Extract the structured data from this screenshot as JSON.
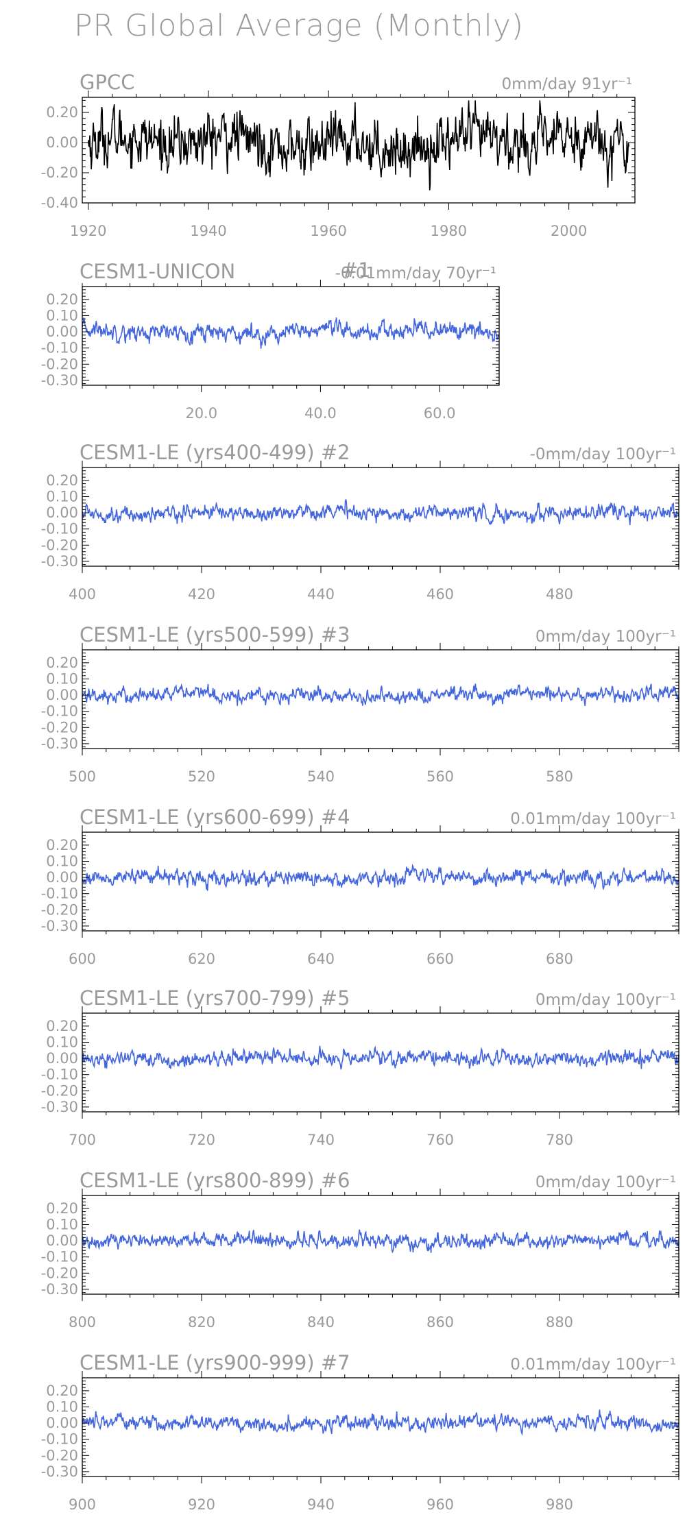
{
  "figure": {
    "title": "PR Global Average (Monthly)"
  },
  "chart_data": [
    {
      "type": "line",
      "title": "GPCC",
      "trend_label": "0mm/day 91yr⁻¹",
      "x_range": [
        1919,
        2011
      ],
      "ylim": [
        -0.4,
        0.3
      ],
      "y_ticks": [
        0.2,
        0.0,
        -0.2,
        -0.4
      ],
      "y_tick_labels": [
        "0.20",
        "0.00",
        "-0.20",
        "-0.40"
      ],
      "x_ticks": [
        1920,
        1940,
        1960,
        1980,
        2000
      ],
      "x_tick_labels": [
        "1920",
        "1940",
        "1960",
        "1980",
        "2000"
      ],
      "series": [
        {
          "color": "#000000",
          "start": 1920,
          "end": 2010,
          "amplitude": 0.085,
          "mean": 0.0
        }
      ]
    },
    {
      "type": "line",
      "title": "CESM1-UNICON",
      "trend_label": "-0.01mm/day 70yr⁻¹",
      "number_label": "#1",
      "x_range": [
        0,
        70
      ],
      "ylim": [
        -0.33,
        0.28
      ],
      "y_ticks": [
        0.2,
        0.1,
        0.0,
        -0.1,
        -0.2,
        -0.3
      ],
      "y_tick_labels": [
        "0.20",
        "0.10",
        "0.00",
        "-0.10",
        "-0.20",
        "-0.30"
      ],
      "x_ticks": [
        20,
        40,
        60
      ],
      "x_tick_labels": [
        "20.0",
        "40.0",
        "60.0"
      ],
      "series": [
        {
          "color": "#4466dd",
          "start": 0,
          "end": 70,
          "amplitude": 0.025,
          "mean": 0.0
        }
      ]
    },
    {
      "type": "line",
      "title": "CESM1-LE (yrs400-499) #2",
      "trend_label": "-0mm/day 100yr⁻¹",
      "x_range": [
        400,
        500
      ],
      "ylim": [
        -0.33,
        0.28
      ],
      "y_ticks": [
        0.2,
        0.1,
        0.0,
        -0.1,
        -0.2,
        -0.3
      ],
      "y_tick_labels": [
        "0.20",
        "0.10",
        "0.00",
        "-0.10",
        "-0.20",
        "-0.30"
      ],
      "x_ticks": [
        400,
        420,
        440,
        460,
        480
      ],
      "x_tick_labels": [
        "400",
        "420",
        "440",
        "460",
        "480"
      ],
      "series": [
        {
          "color": "#4466dd",
          "start": 400,
          "end": 500,
          "amplitude": 0.022,
          "mean": 0.0
        }
      ]
    },
    {
      "type": "line",
      "title": "CESM1-LE (yrs500-599) #3",
      "trend_label": "0mm/day 100yr⁻¹",
      "x_range": [
        500,
        600
      ],
      "ylim": [
        -0.33,
        0.28
      ],
      "y_ticks": [
        0.2,
        0.1,
        0.0,
        -0.1,
        -0.2,
        -0.3
      ],
      "y_tick_labels": [
        "0.20",
        "0.10",
        "0.00",
        "-0.10",
        "-0.20",
        "-0.30"
      ],
      "x_ticks": [
        500,
        520,
        540,
        560,
        580
      ],
      "x_tick_labels": [
        "500",
        "520",
        "540",
        "560",
        "580"
      ],
      "series": [
        {
          "color": "#4466dd",
          "start": 500,
          "end": 600,
          "amplitude": 0.022,
          "mean": 0.0
        }
      ]
    },
    {
      "type": "line",
      "title": "CESM1-LE (yrs600-699) #4",
      "trend_label": "0.01mm/day 100yr⁻¹",
      "x_range": [
        600,
        700
      ],
      "ylim": [
        -0.33,
        0.28
      ],
      "y_ticks": [
        0.2,
        0.1,
        0.0,
        -0.1,
        -0.2,
        -0.3
      ],
      "y_tick_labels": [
        "0.20",
        "0.10",
        "0.00",
        "-0.10",
        "-0.20",
        "-0.30"
      ],
      "x_ticks": [
        600,
        620,
        640,
        660,
        680
      ],
      "x_tick_labels": [
        "600",
        "620",
        "640",
        "660",
        "680"
      ],
      "series": [
        {
          "color": "#4466dd",
          "start": 600,
          "end": 700,
          "amplitude": 0.022,
          "mean": 0.0
        }
      ]
    },
    {
      "type": "line",
      "title": "CESM1-LE (yrs700-799) #5",
      "trend_label": "0mm/day 100yr⁻¹",
      "x_range": [
        700,
        800
      ],
      "ylim": [
        -0.33,
        0.28
      ],
      "y_ticks": [
        0.2,
        0.1,
        0.0,
        -0.1,
        -0.2,
        -0.3
      ],
      "y_tick_labels": [
        "0.20",
        "0.10",
        "0.00",
        "-0.10",
        "-0.20",
        "-0.30"
      ],
      "x_ticks": [
        700,
        720,
        740,
        760,
        780
      ],
      "x_tick_labels": [
        "700",
        "720",
        "740",
        "760",
        "780"
      ],
      "series": [
        {
          "color": "#4466dd",
          "start": 700,
          "end": 800,
          "amplitude": 0.022,
          "mean": 0.0
        }
      ]
    },
    {
      "type": "line",
      "title": "CESM1-LE (yrs800-899) #6",
      "trend_label": "0mm/day 100yr⁻¹",
      "x_range": [
        800,
        900
      ],
      "ylim": [
        -0.33,
        0.28
      ],
      "y_ticks": [
        0.2,
        0.1,
        0.0,
        -0.1,
        -0.2,
        -0.3
      ],
      "y_tick_labels": [
        "0.20",
        "0.10",
        "0.00",
        "-0.10",
        "-0.20",
        "-0.30"
      ],
      "x_ticks": [
        800,
        820,
        840,
        860,
        880
      ],
      "x_tick_labels": [
        "800",
        "820",
        "840",
        "860",
        "880"
      ],
      "series": [
        {
          "color": "#4466dd",
          "start": 800,
          "end": 900,
          "amplitude": 0.022,
          "mean": 0.0
        }
      ]
    },
    {
      "type": "line",
      "title": "CESM1-LE (yrs900-999) #7",
      "trend_label": "0.01mm/day 100yr⁻¹",
      "x_range": [
        900,
        1000
      ],
      "ylim": [
        -0.33,
        0.28
      ],
      "y_ticks": [
        0.2,
        0.1,
        0.0,
        -0.1,
        -0.2,
        -0.3
      ],
      "y_tick_labels": [
        "0.20",
        "0.10",
        "0.00",
        "-0.10",
        "-0.20",
        "-0.30"
      ],
      "x_ticks": [
        900,
        920,
        940,
        960,
        980
      ],
      "x_tick_labels": [
        "900",
        "920",
        "940",
        "960",
        "980"
      ],
      "series": [
        {
          "color": "#4466dd",
          "start": 900,
          "end": 1000,
          "amplitude": 0.022,
          "mean": 0.0
        }
      ]
    }
  ]
}
